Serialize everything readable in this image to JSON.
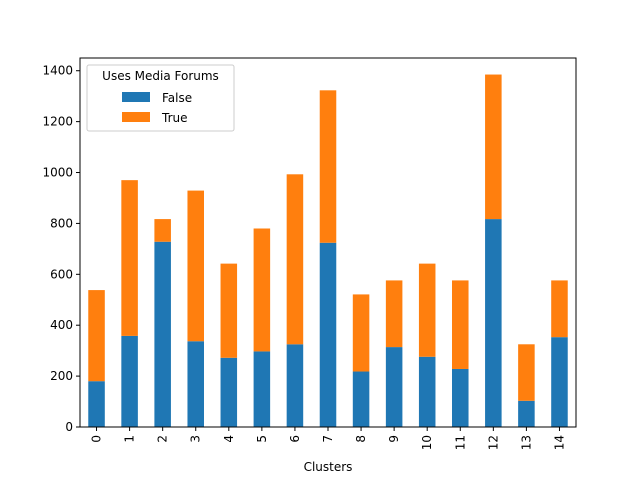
{
  "chart_data": {
    "type": "bar",
    "stacked": true,
    "categories": [
      "0",
      "1",
      "2",
      "3",
      "4",
      "5",
      "6",
      "7",
      "8",
      "9",
      "10",
      "11",
      "12",
      "13",
      "14"
    ],
    "series": [
      {
        "name": "False",
        "color": "#1f77b4",
        "values": [
          180,
          358,
          728,
          337,
          272,
          297,
          325,
          724,
          218,
          314,
          276,
          228,
          817,
          103,
          353
        ]
      },
      {
        "name": "True",
        "color": "#ff7f0e",
        "values": [
          358,
          612,
          89,
          592,
          370,
          483,
          668,
          599,
          303,
          262,
          366,
          348,
          568,
          222,
          223
        ]
      }
    ],
    "title": "",
    "xlabel": "Clusters",
    "ylabel": "",
    "ylim": [
      0,
      1450
    ],
    "yticks": [
      0,
      200,
      400,
      600,
      800,
      1000,
      1200,
      1400
    ],
    "legend": {
      "title": "Uses Media Forums",
      "placement": "top-left"
    },
    "grid": false
  }
}
